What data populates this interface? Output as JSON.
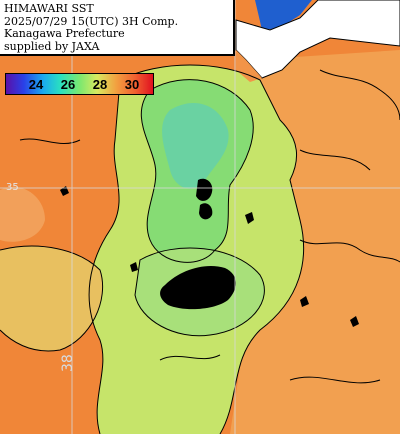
{
  "title": {
    "line1": "HIMAWARI SST",
    "line2": "2025/07/29 15(UTC) 3H Comp.",
    "line3": "Kanagawa Prefecture",
    "line4": "supplied by JAXA"
  },
  "color_scale": {
    "ticks": [
      "24",
      "26",
      "28",
      "30"
    ],
    "colors": [
      "#5a10a8",
      "#2a40e8",
      "#1aa8f0",
      "#2ae0c0",
      "#7ae870",
      "#d8ea60",
      "#f2a040",
      "#f06030",
      "#e01020"
    ]
  },
  "grid_labels": {
    "longitude": "38",
    "latitude": "35"
  },
  "colors": {
    "sea_warm": "#f28a3a",
    "sea_mid": "#f2b060",
    "sea_cool": "#8ed870",
    "sea_cold": "#6ad0a0",
    "land": "#ffffff",
    "mask": "#000000",
    "deep_sea_top": "#1f5fcf"
  }
}
